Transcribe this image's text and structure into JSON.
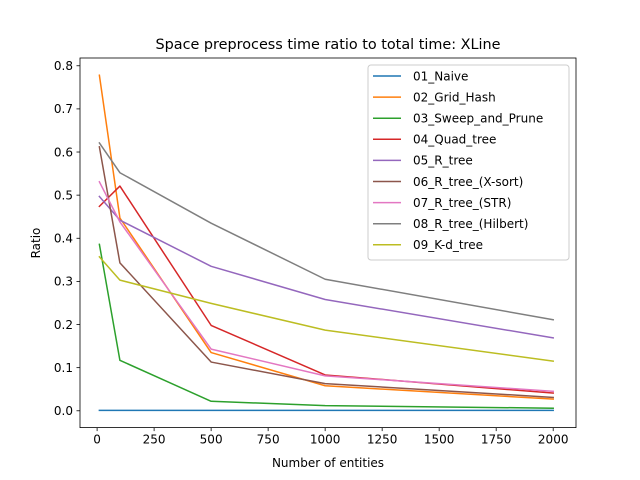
{
  "chart_data": {
    "type": "line",
    "title": "Space preprocess time ratio to total time: XLine",
    "xlabel": "Number of entities",
    "ylabel": "Ratio",
    "xlim": [
      -75,
      2100
    ],
    "ylim": [
      -0.039,
      0.818
    ],
    "xticks": [
      0,
      250,
      500,
      750,
      1000,
      1250,
      1500,
      1750,
      2000
    ],
    "xtick_labels": [
      "0",
      "250",
      "500",
      "750",
      "1000",
      "1250",
      "1500",
      "1750",
      "2000"
    ],
    "yticks": [
      0.0,
      0.1,
      0.2,
      0.3,
      0.4,
      0.5,
      0.6,
      0.7,
      0.8
    ],
    "ytick_labels": [
      "0.0",
      "0.1",
      "0.2",
      "0.3",
      "0.4",
      "0.5",
      "0.6",
      "0.7",
      "0.8"
    ],
    "grid": false,
    "legend_position": "top-right",
    "x": [
      10,
      100,
      500,
      1000,
      2000
    ],
    "series": [
      {
        "name": "01_Naive",
        "color": "#1f77b4",
        "values": [
          0.001,
          0.001,
          0.001,
          0.001,
          0.001
        ]
      },
      {
        "name": "02_Grid_Hash",
        "color": "#ff7f0e",
        "values": [
          0.778,
          0.447,
          0.135,
          0.058,
          0.027
        ]
      },
      {
        "name": "03_Sweep_and_Prune",
        "color": "#2ca02c",
        "values": [
          0.386,
          0.117,
          0.022,
          0.012,
          0.006
        ]
      },
      {
        "name": "04_Quad_tree",
        "color": "#d62728",
        "values": [
          0.474,
          0.521,
          0.198,
          0.083,
          0.041
        ]
      },
      {
        "name": "05_R_tree",
        "color": "#9467bd",
        "values": [
          0.497,
          0.442,
          0.335,
          0.258,
          0.169
        ]
      },
      {
        "name": "06_R_tree_(X-sort)",
        "color": "#8c564b",
        "values": [
          0.612,
          0.343,
          0.113,
          0.063,
          0.031
        ]
      },
      {
        "name": "07_R_tree_(STR)",
        "color": "#e377c2",
        "values": [
          0.531,
          0.438,
          0.143,
          0.081,
          0.045
        ]
      },
      {
        "name": "08_R_tree_(Hilbert)",
        "color": "#7f7f7f",
        "values": [
          0.621,
          0.552,
          0.435,
          0.305,
          0.211
        ]
      },
      {
        "name": "09_K-d_tree",
        "color": "#bcbd22",
        "values": [
          0.357,
          0.303,
          0.249,
          0.187,
          0.115
        ]
      }
    ]
  }
}
